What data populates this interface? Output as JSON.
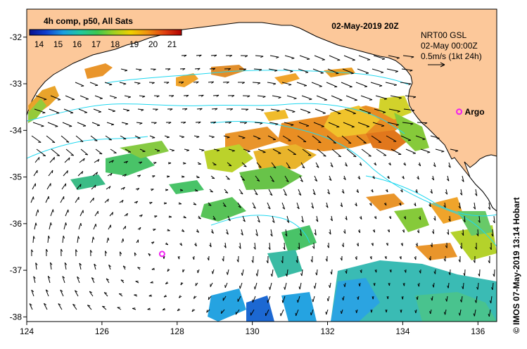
{
  "title": "02-May-2019 20Z",
  "colorbar": {
    "title": "4h comp, p50, All Sats",
    "ticks": [
      "14",
      "15",
      "16",
      "17",
      "18",
      "19",
      "20",
      "21"
    ],
    "min": 13.5,
    "max": 21.5,
    "colors": [
      "#08108f",
      "#1040d0",
      "#1a9fe0",
      "#20c8a0",
      "#3cc850",
      "#a0d020",
      "#f0d000",
      "#f09010",
      "#e04010",
      "#b00000"
    ]
  },
  "current_legend": {
    "line1": "NRT00 GSL",
    "line2": "02-May 00:00Z",
    "line3": "0.5m/s (1kt 24h)"
  },
  "axes": {
    "x_ticks": [
      "124",
      "126",
      "128",
      "130",
      "132",
      "134",
      "136"
    ],
    "y_ticks": [
      "-32",
      "-33",
      "-34",
      "-35",
      "-36",
      "-37",
      "-38"
    ]
  },
  "markers": [
    {
      "name": "Argo",
      "label": "Argo",
      "lon": 135.5,
      "lat": -33.6
    },
    {
      "name": "Argo unlabeled",
      "label": "",
      "lon": 127.6,
      "lat": -36.65
    }
  ],
  "colors": {
    "land": "#fcc89a",
    "coast": "#000000",
    "contour": "#20d8f0",
    "marker": "#f020f0"
  },
  "credit": "© IMOS 07-May-2019 13:14 Hobart"
}
